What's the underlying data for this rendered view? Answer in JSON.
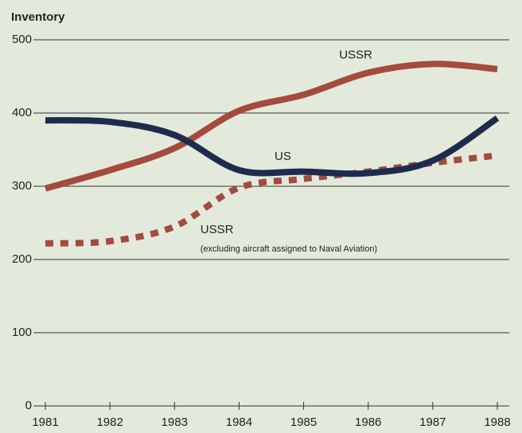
{
  "chart_data": {
    "type": "line",
    "y_label": "Inventory",
    "x": [
      1981,
      1982,
      1983,
      1984,
      1985,
      1986,
      1987,
      1988
    ],
    "series": [
      {
        "name": "US",
        "color": "#1f2b4d",
        "style": "solid",
        "values": [
          390,
          388,
          370,
          322,
          320,
          318,
          335,
          393
        ]
      },
      {
        "name": "USSR",
        "color": "#a44a3f",
        "style": "solid",
        "values": [
          297,
          322,
          352,
          403,
          425,
          455,
          467,
          460
        ]
      },
      {
        "name": "USSR",
        "color": "#a44a3f",
        "style": "dotted",
        "values": [
          222,
          225,
          245,
          298,
          310,
          320,
          332,
          342
        ]
      }
    ],
    "annotations": [
      "(excluding aircraft assigned to Naval Aviation)"
    ],
    "xlim": [
      1981,
      1988
    ],
    "xticks": [
      1981,
      1982,
      1983,
      1984,
      1985,
      1986,
      1987,
      1988
    ],
    "ylim": [
      0,
      500
    ],
    "yticks": [
      0,
      100,
      200,
      300,
      400,
      500
    ],
    "grid": true
  }
}
